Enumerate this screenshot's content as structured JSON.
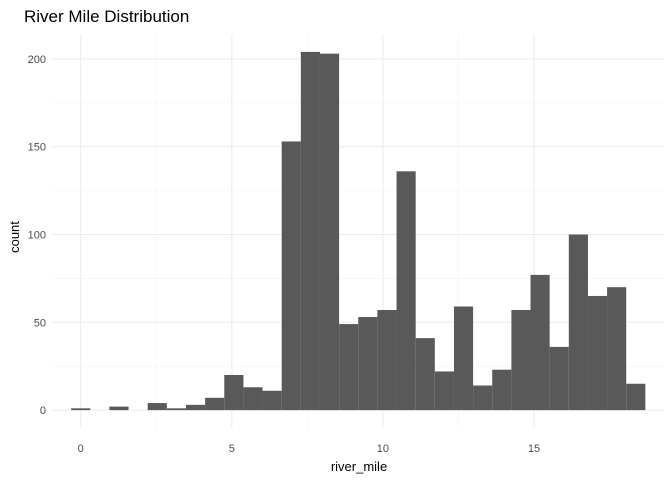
{
  "chart_data": {
    "type": "bar",
    "subtype": "histogram",
    "title": "River Mile Distribution",
    "xlabel": "river_mile",
    "ylabel": "count",
    "bin_width": 0.6333,
    "bin_centers": [
      0.0,
      0.633,
      1.267,
      1.9,
      2.533,
      3.167,
      3.8,
      4.433,
      5.067,
      5.7,
      6.333,
      6.967,
      7.6,
      8.233,
      8.867,
      9.5,
      10.133,
      10.767,
      11.4,
      12.033,
      12.667,
      13.3,
      13.933,
      14.567,
      15.2,
      15.833,
      16.467,
      17.1,
      17.733,
      18.367
    ],
    "counts": [
      1,
      0,
      2,
      0,
      4,
      1,
      3,
      7,
      20,
      13,
      11,
      153,
      204,
      203,
      49,
      53,
      57,
      136,
      41,
      22,
      59,
      14,
      23,
      57,
      77,
      36,
      100,
      65,
      70,
      15
    ],
    "bar_color": "#595959",
    "xlim": [
      -0.95,
      19.3
    ],
    "ylim": [
      -10.2,
      214.2
    ],
    "x_ticks": [
      0,
      5,
      10,
      15
    ],
    "x_tick_labels": [
      "0",
      "5",
      "10",
      "15"
    ],
    "y_ticks": [
      0,
      50,
      100,
      150,
      200
    ],
    "y_tick_labels": [
      "0",
      "50",
      "100",
      "150",
      "200"
    ],
    "grid": true,
    "legend": "none"
  }
}
